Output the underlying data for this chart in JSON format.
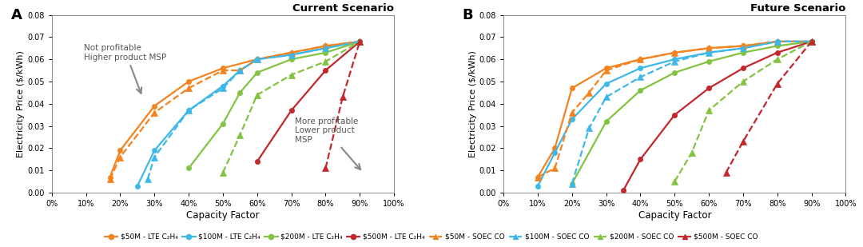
{
  "panel_A_title": "Current Scenario",
  "panel_B_title": "Future Scenario",
  "xlabel": "Capacity Factor",
  "ylabel": "Electricity Price ($/kWh)",
  "ylim": [
    0.0,
    0.08
  ],
  "yticks": [
    0.0,
    0.01,
    0.02,
    0.03,
    0.04,
    0.05,
    0.06,
    0.07,
    0.08
  ],
  "xticks": [
    0.0,
    0.1,
    0.2,
    0.3,
    0.4,
    0.5,
    0.6,
    0.7,
    0.8,
    0.9,
    1.0
  ],
  "xlim": [
    0.0,
    1.0
  ],
  "colors": {
    "50M": "#F4831F",
    "100M": "#3DB8E8",
    "200M": "#82C341",
    "500M": "#C1272D"
  },
  "A_LTE_50M": {
    "x": [
      0.17,
      0.2,
      0.3,
      0.4,
      0.5,
      0.6,
      0.7,
      0.8,
      0.9
    ],
    "y": [
      0.007,
      0.019,
      0.039,
      0.05,
      0.056,
      0.06,
      0.063,
      0.066,
      0.068
    ]
  },
  "A_LTE_100M": {
    "x": [
      0.25,
      0.3,
      0.4,
      0.5,
      0.55,
      0.6,
      0.7,
      0.8,
      0.9
    ],
    "y": [
      0.003,
      0.019,
      0.037,
      0.048,
      0.055,
      0.06,
      0.062,
      0.065,
      0.068
    ]
  },
  "A_LTE_200M": {
    "x": [
      0.4,
      0.5,
      0.55,
      0.6,
      0.7,
      0.8,
      0.9
    ],
    "y": [
      0.011,
      0.031,
      0.045,
      0.054,
      0.06,
      0.063,
      0.068
    ]
  },
  "A_LTE_500M": {
    "x": [
      0.6,
      0.7,
      0.8,
      0.9
    ],
    "y": [
      0.014,
      0.037,
      0.055,
      0.068
    ]
  },
  "A_SOEC_50M": {
    "x": [
      0.17,
      0.2,
      0.3,
      0.4,
      0.5,
      0.55,
      0.6,
      0.7,
      0.8,
      0.9
    ],
    "y": [
      0.006,
      0.016,
      0.036,
      0.047,
      0.055,
      0.055,
      0.06,
      0.063,
      0.066,
      0.068
    ]
  },
  "A_SOEC_100M": {
    "x": [
      0.28,
      0.3,
      0.4,
      0.5,
      0.55,
      0.6,
      0.7,
      0.8,
      0.9
    ],
    "y": [
      0.006,
      0.016,
      0.037,
      0.047,
      0.055,
      0.06,
      0.062,
      0.065,
      0.068
    ]
  },
  "A_SOEC_200M": {
    "x": [
      0.5,
      0.55,
      0.6,
      0.7,
      0.8,
      0.9
    ],
    "y": [
      0.009,
      0.026,
      0.044,
      0.053,
      0.059,
      0.068
    ]
  },
  "A_SOEC_500M": {
    "x": [
      0.8,
      0.85,
      0.9
    ],
    "y": [
      0.011,
      0.043,
      0.068
    ]
  },
  "B_LTE_50M": {
    "x": [
      0.1,
      0.15,
      0.2,
      0.3,
      0.4,
      0.5,
      0.6,
      0.7,
      0.8,
      0.9
    ],
    "y": [
      0.007,
      0.02,
      0.047,
      0.056,
      0.06,
      0.063,
      0.065,
      0.066,
      0.068,
      0.068
    ]
  },
  "B_LTE_100M": {
    "x": [
      0.1,
      0.15,
      0.2,
      0.3,
      0.4,
      0.5,
      0.6,
      0.7,
      0.8,
      0.9
    ],
    "y": [
      0.003,
      0.018,
      0.033,
      0.049,
      0.056,
      0.06,
      0.063,
      0.065,
      0.068,
      0.068
    ]
  },
  "B_LTE_200M": {
    "x": [
      0.2,
      0.3,
      0.4,
      0.5,
      0.6,
      0.7,
      0.8,
      0.9
    ],
    "y": [
      0.004,
      0.032,
      0.046,
      0.054,
      0.059,
      0.063,
      0.066,
      0.068
    ]
  },
  "B_LTE_500M": {
    "x": [
      0.35,
      0.4,
      0.5,
      0.6,
      0.7,
      0.8,
      0.9
    ],
    "y": [
      0.001,
      0.015,
      0.035,
      0.047,
      0.056,
      0.063,
      0.068
    ]
  },
  "B_SOEC_50M": {
    "x": [
      0.1,
      0.15,
      0.2,
      0.25,
      0.3,
      0.4,
      0.5,
      0.6,
      0.7,
      0.8,
      0.9
    ],
    "y": [
      0.007,
      0.011,
      0.036,
      0.045,
      0.055,
      0.06,
      0.063,
      0.065,
      0.066,
      0.068,
      0.068
    ]
  },
  "B_SOEC_100M": {
    "x": [
      0.2,
      0.25,
      0.3,
      0.4,
      0.5,
      0.6,
      0.7,
      0.8,
      0.9
    ],
    "y": [
      0.004,
      0.029,
      0.043,
      0.052,
      0.059,
      0.063,
      0.065,
      0.068,
      0.068
    ]
  },
  "B_SOEC_200M": {
    "x": [
      0.5,
      0.55,
      0.6,
      0.7,
      0.8,
      0.9
    ],
    "y": [
      0.005,
      0.018,
      0.037,
      0.05,
      0.06,
      0.068
    ]
  },
  "B_SOEC_500M": {
    "x": [
      0.65,
      0.7,
      0.8,
      0.9
    ],
    "y": [
      0.009,
      0.023,
      0.049,
      0.068
    ]
  },
  "legend_lte": [
    {
      "label": "$50M - LTE C₂H₄",
      "color": "#F4831F"
    },
    {
      "label": "$100M - LTE C₂H₄",
      "color": "#3DB8E8"
    },
    {
      "label": "$200M - LTE C₂H₄",
      "color": "#82C341"
    },
    {
      "label": "$500M - LTE C₂H₄",
      "color": "#C1272D"
    }
  ],
  "legend_soec": [
    {
      "label": "$50M - SOEC CO",
      "color": "#F4831F"
    },
    {
      "label": "$100M - SOEC CO",
      "color": "#3DB8E8"
    },
    {
      "label": "$200M - SOEC CO",
      "color": "#82C341"
    },
    {
      "label": "$500M - SOEC CO",
      "color": "#C1272D"
    }
  ]
}
